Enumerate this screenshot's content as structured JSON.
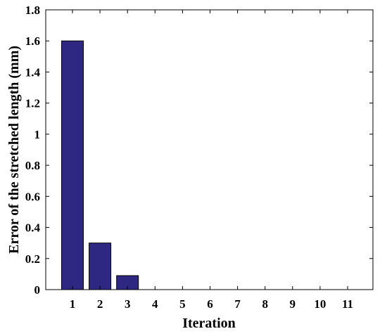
{
  "chart_data": {
    "type": "bar",
    "categories": [
      "1",
      "2",
      "3",
      "4",
      "5",
      "6",
      "7",
      "8",
      "9",
      "10",
      "11"
    ],
    "values": [
      1.6,
      0.3,
      0.09,
      0,
      0,
      0,
      0,
      0,
      0,
      0,
      0
    ],
    "xlabel": "Iteration",
    "ylabel": "Error of the stretched length (mm)",
    "ylim": [
      0,
      1.8
    ],
    "yticks": [
      "0",
      "0.2",
      "0.4",
      "0.6",
      "0.8",
      "1",
      "1.2",
      "1.4",
      "1.6",
      "1.8"
    ],
    "grid": false,
    "bar_color": "#2e2882"
  }
}
